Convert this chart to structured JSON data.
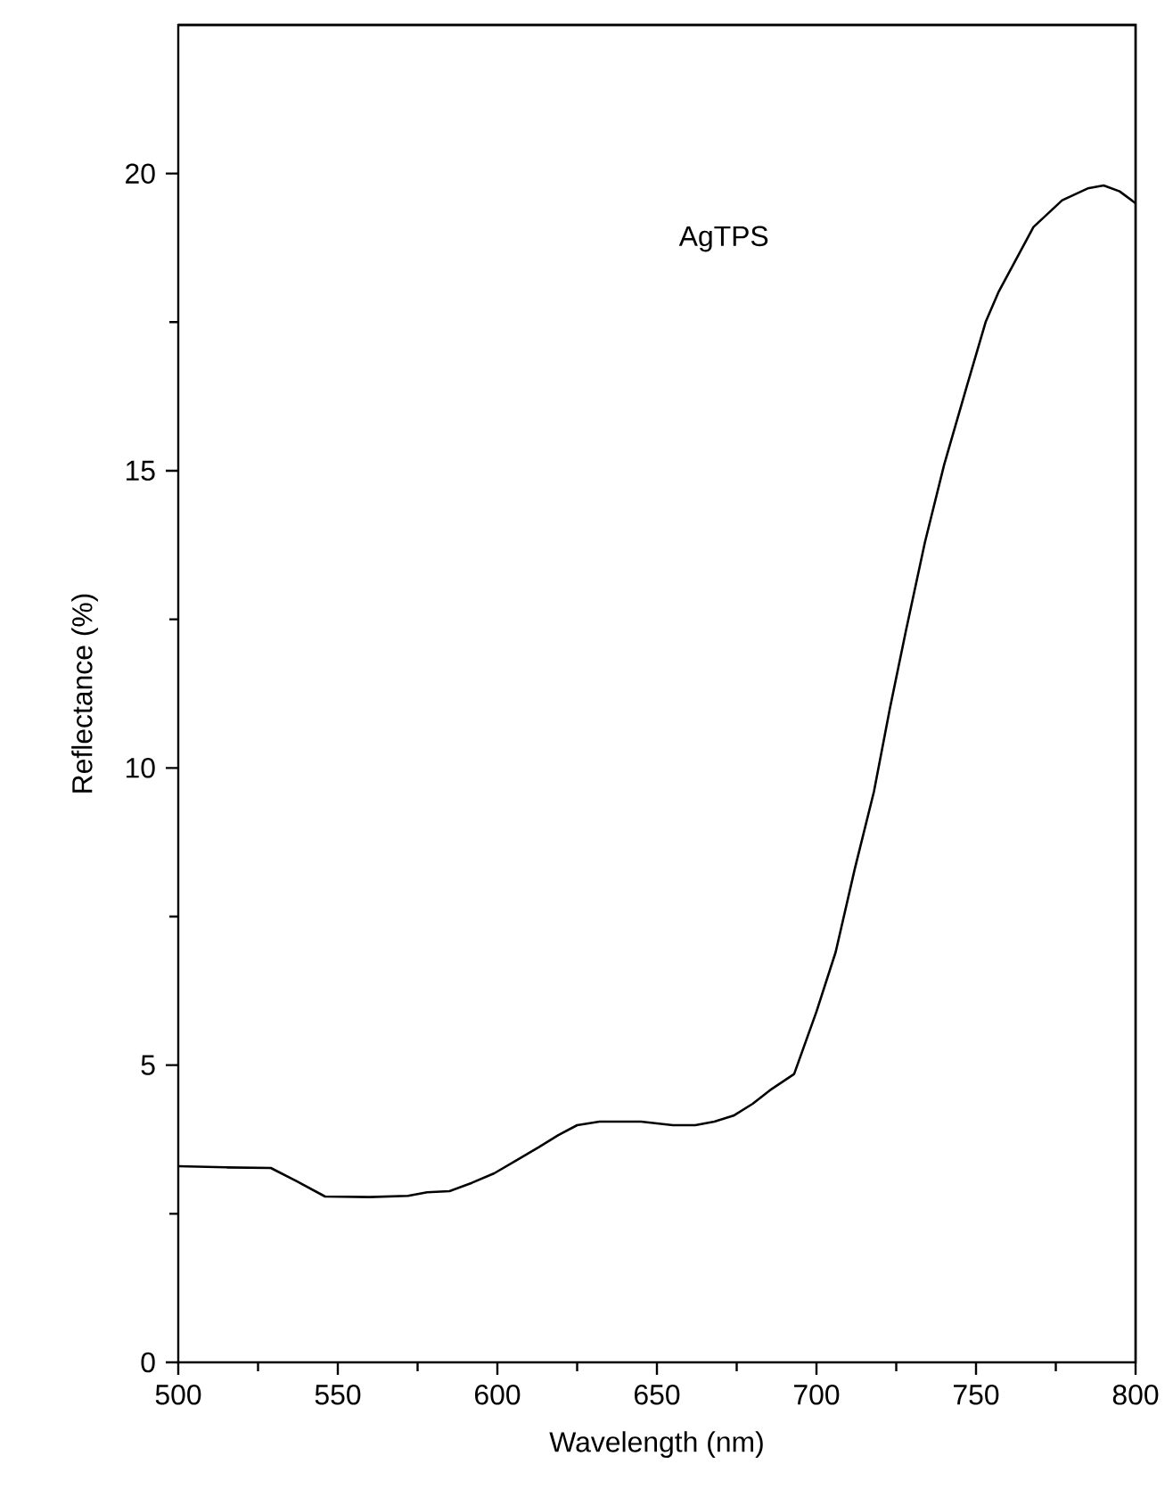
{
  "chart_data": {
    "type": "line",
    "xlabel": "Wavelength (nm)",
    "ylabel": "Reflectance (%)",
    "annotations": [
      "AgTPS"
    ],
    "x": [
      500,
      515,
      529,
      537,
      546,
      560,
      572,
      578,
      585,
      592,
      599,
      606,
      613,
      619,
      625,
      632,
      645,
      655,
      662,
      668,
      674,
      680,
      686,
      693,
      700,
      706,
      712,
      718,
      723,
      728,
      734,
      740,
      747,
      753,
      757,
      762,
      768,
      777,
      785,
      790,
      795,
      800
    ],
    "series": [
      {
        "color": "#000000",
        "values": [
          3.3,
          3.28,
          3.27,
          3.05,
          2.79,
          2.78,
          2.8,
          2.86,
          2.88,
          3.02,
          3.18,
          3.4,
          3.62,
          3.82,
          3.99,
          4.05,
          4.05,
          3.99,
          3.99,
          4.05,
          4.15,
          4.35,
          4.6,
          4.85,
          5.9,
          6.9,
          8.3,
          9.6,
          11.0,
          12.3,
          13.8,
          15.1,
          16.4,
          17.5,
          18.0,
          18.5,
          19.1,
          19.55,
          19.75,
          19.8,
          19.7,
          19.5
        ]
      }
    ],
    "xlim": [
      500,
      800
    ],
    "ylim": [
      0,
      22.5
    ],
    "xticks": [
      500,
      550,
      600,
      650,
      700,
      750,
      800
    ],
    "yticks": [
      0,
      5,
      10,
      15,
      20
    ],
    "marker": "none",
    "line_style": "solid"
  }
}
